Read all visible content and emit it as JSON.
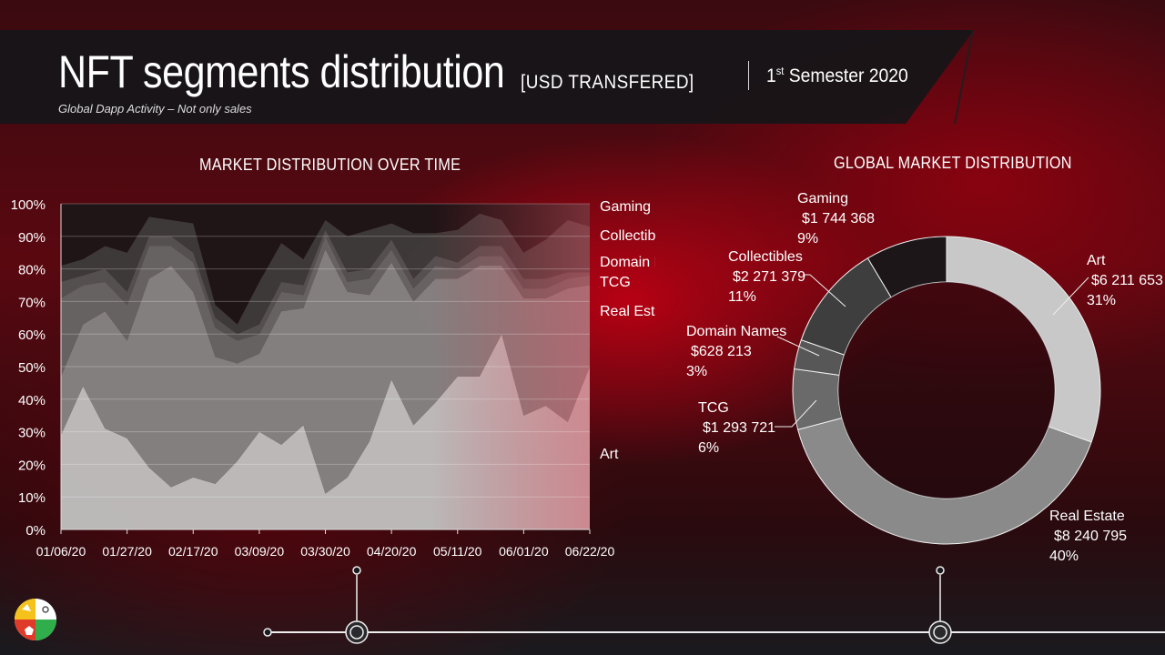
{
  "header": {
    "title": "NFT segments distribution",
    "unit": "[USD TRANSFERED]",
    "subtitle": "Global Dapp Activity – Not only sales",
    "period_ordinal": "1",
    "period_suffix": "st",
    "period_rest": " Semester 2020"
  },
  "left_section_title": "MARKET DISTRIBUTION OVER TIME",
  "right_section_title": "GLOBAL MARKET DISTRIBUTION",
  "colors": {
    "Art": "#c8c8c8",
    "Real Estate": "#8a8a8a",
    "TCG": "#6a6a6a",
    "Domain Names": "#575757",
    "Collectibles": "#3e3e3e",
    "Gaming": "#1c1618"
  },
  "chart_data": [
    {
      "type": "area",
      "title": "MARKET DISTRIBUTION OVER TIME",
      "stacked": true,
      "y_unit": "%",
      "ylim": [
        0,
        100
      ],
      "yticks": [
        "0%",
        "10%",
        "20%",
        "30%",
        "40%",
        "50%",
        "60%",
        "70%",
        "80%",
        "90%",
        "100%"
      ],
      "xtick_labels": [
        "01/06/20",
        "01/27/20",
        "02/17/20",
        "03/09/20",
        "03/30/20",
        "04/20/20",
        "05/11/20",
        "06/01/20",
        "06/22/20"
      ],
      "x": [
        "01/06/20",
        "01/13/20",
        "01/20/20",
        "01/27/20",
        "02/03/20",
        "02/10/20",
        "02/17/20",
        "02/24/20",
        "03/02/20",
        "03/09/20",
        "03/16/20",
        "03/23/20",
        "03/30/20",
        "04/06/20",
        "04/13/20",
        "04/20/20",
        "04/27/20",
        "05/04/20",
        "05/11/20",
        "05/18/20",
        "05/25/20",
        "06/01/20",
        "06/08/20",
        "06/15/20",
        "06/22/20"
      ],
      "series": [
        {
          "name": "Art",
          "values": [
            29,
            44,
            31,
            28,
            19,
            13,
            16,
            14,
            21,
            30,
            26,
            32,
            11,
            16,
            27,
            46,
            32,
            39,
            47,
            47,
            60,
            35,
            38,
            33,
            50
          ]
        },
        {
          "name": "Real Estate",
          "values": [
            18,
            19,
            36,
            30,
            58,
            68,
            57,
            39,
            30,
            24,
            41,
            36,
            75,
            57,
            45,
            36,
            38,
            38,
            30,
            34,
            21,
            36,
            33,
            41,
            25
          ]
        },
        {
          "name": "TCG",
          "values": [
            24,
            12,
            9,
            11,
            10,
            6,
            9,
            9,
            7,
            6,
            6,
            4,
            4,
            3,
            5,
            4,
            4,
            4,
            3,
            3,
            3,
            3,
            3,
            3,
            3
          ]
        },
        {
          "name": "Domain Names",
          "values": [
            5,
            3,
            4,
            4,
            3,
            3,
            3,
            3,
            2,
            3,
            3,
            3,
            2,
            3,
            3,
            3,
            3,
            3,
            2,
            3,
            3,
            3,
            3,
            2,
            1
          ]
        },
        {
          "name": "Collectibles",
          "values": [
            5,
            5,
            7,
            12,
            6,
            5,
            9,
            4,
            3,
            13,
            12,
            8,
            3,
            11,
            12,
            5,
            14,
            7,
            10,
            10,
            8,
            8,
            12,
            16,
            14
          ]
        },
        {
          "name": "Gaming",
          "values": [
            19,
            17,
            13,
            15,
            4,
            5,
            6,
            31,
            37,
            24,
            12,
            17,
            5,
            10,
            8,
            6,
            9,
            9,
            8,
            3,
            5,
            15,
            11,
            5,
            7
          ]
        }
      ],
      "legend_labels": [
        "Gaming",
        "Collectibles",
        "Domain Names",
        "TCG",
        "Real Estate",
        "Art"
      ]
    },
    {
      "type": "pie",
      "title": "GLOBAL MARKET DISTRIBUTION",
      "donut": true,
      "slices": [
        {
          "name": "Art",
          "value": 6211653,
          "amount_label": "$6 211 653",
          "percent_label": "31%"
        },
        {
          "name": "Real Estate",
          "value": 8240795,
          "amount_label": "$8 240 795",
          "percent_label": "40%"
        },
        {
          "name": "TCG",
          "value": 1293721,
          "amount_label": "$1 293 721",
          "percent_label": "6%"
        },
        {
          "name": "Domain Names",
          "value": 628213,
          "amount_label": "$628 213",
          "percent_label": "3%"
        },
        {
          "name": "Collectibles",
          "value": 2271379,
          "amount_label": "$2 271 379",
          "percent_label": "11%"
        },
        {
          "name": "Gaming",
          "value": 1744368,
          "amount_label": "$1 744 368",
          "percent_label": "9%"
        }
      ]
    }
  ]
}
